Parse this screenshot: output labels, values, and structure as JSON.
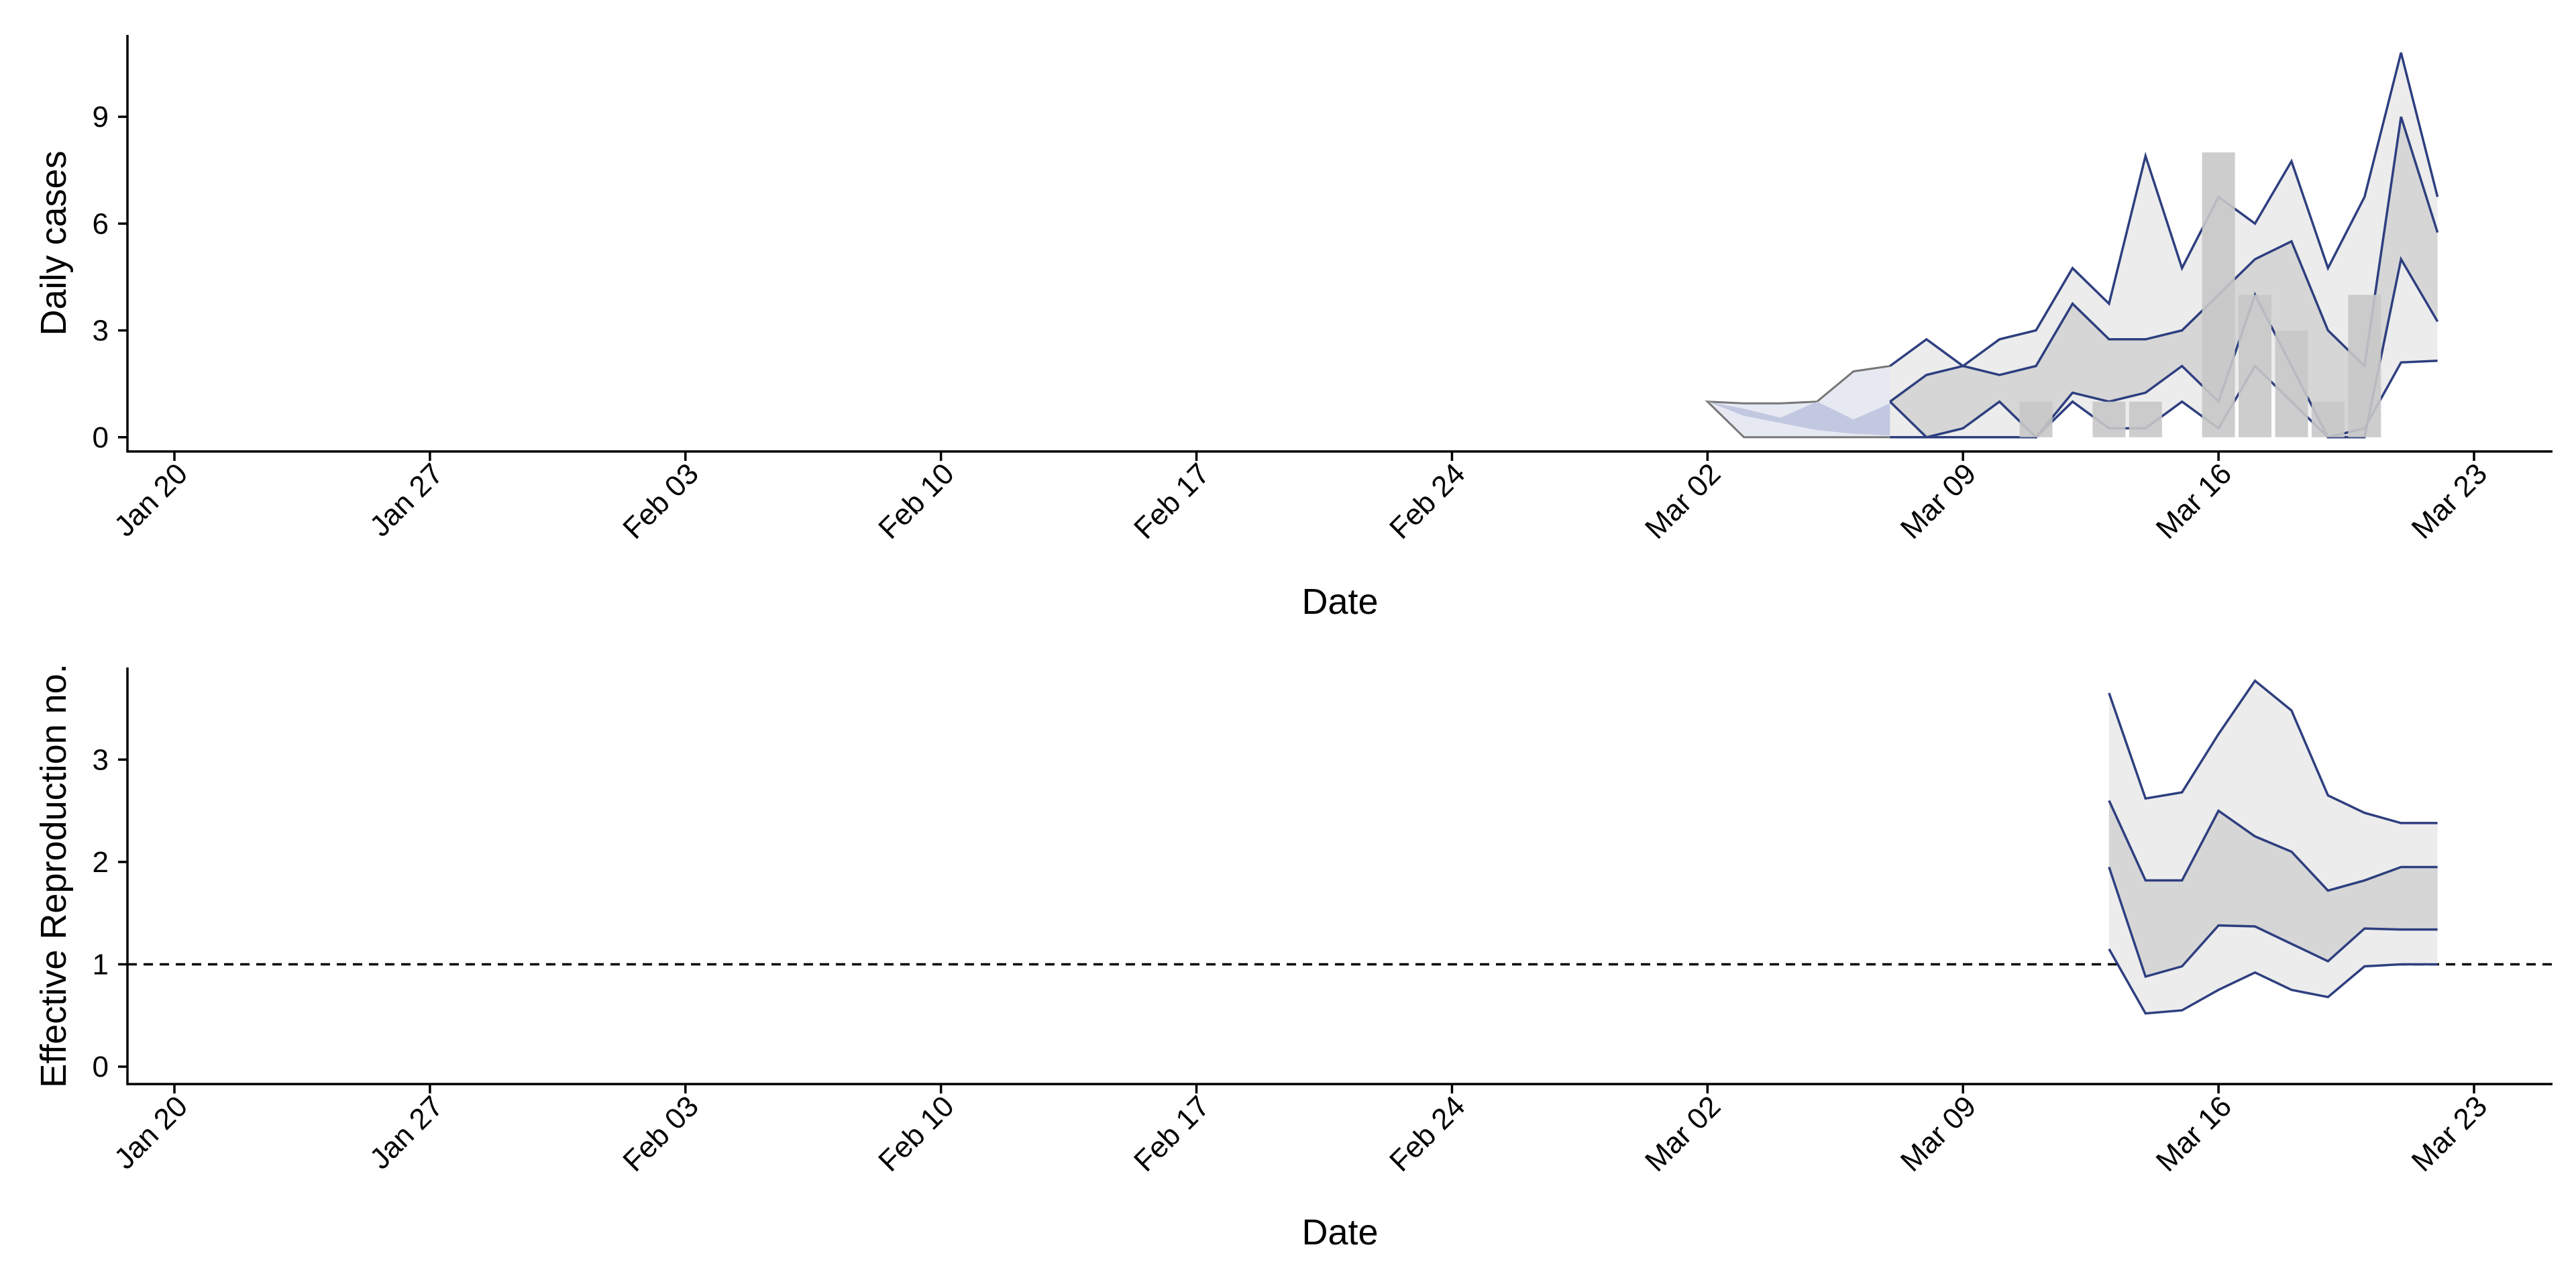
{
  "colors": {
    "line": "#2e3f7f",
    "bar": "#c8c8c8",
    "band_outer": "#ececec",
    "band_inner": "#d2d2d2",
    "nowcast_outer": "#e6e8f2",
    "nowcast_inner": "#c2c8e0",
    "nowcast_line": "#777777"
  },
  "chart_data": [
    {
      "type": "area",
      "xlabel": "Date",
      "ylabel": "Daily cases",
      "x_ticks": [
        "Jan 20",
        "Jan 27",
        "Feb 03",
        "Feb 10",
        "Feb 17",
        "Feb 24",
        "Mar 02",
        "Mar 09",
        "Mar 16",
        "Mar 23"
      ],
      "x_range": [
        "2020-01-20",
        "2020-03-23"
      ],
      "y_ticks": [
        "0",
        "3",
        "6",
        "9"
      ],
      "ylim": [
        -0.4,
        11.3
      ],
      "grid": false,
      "bars": {
        "x": [
          "2020-03-11",
          "2020-03-13",
          "2020-03-14",
          "2020-03-16",
          "2020-03-17",
          "2020-03-18",
          "2020-03-19",
          "2020-03-20"
        ],
        "values": [
          1,
          1,
          1,
          8,
          4,
          3,
          1,
          4
        ]
      },
      "nowcast_band": {
        "x": [
          "2020-03-02",
          "2020-03-03",
          "2020-03-04",
          "2020-03-05",
          "2020-03-06",
          "2020-03-07",
          "2020-03-08"
        ],
        "lower90": [
          1.0,
          0.0,
          0.0,
          0.0,
          0.0,
          0.0,
          0.0
        ],
        "upper90": [
          1.0,
          0.95,
          0.95,
          1.0,
          1.85,
          2.0,
          2.05
        ],
        "lower50": [
          1.0,
          0.6,
          0.4,
          0.2,
          0.1,
          0.05,
          0.0
        ],
        "upper50": [
          1.0,
          0.8,
          0.55,
          1.0,
          0.5,
          0.95,
          1.0
        ]
      },
      "series": [
        {
          "x": [
            "2020-03-07",
            "2020-03-08",
            "2020-03-09",
            "2020-03-10",
            "2020-03-11",
            "2020-03-12",
            "2020-03-13",
            "2020-03-14",
            "2020-03-15",
            "2020-03-16",
            "2020-03-17",
            "2020-03-18",
            "2020-03-19",
            "2020-03-20",
            "2020-03-21"
          ],
          "upper90": [
            2.0,
            2.75,
            2.0,
            2.75,
            3.0,
            4.75,
            3.75,
            7.9,
            4.75,
            6.75,
            6.0,
            7.75,
            4.75,
            6.75,
            10.8
          ],
          "upper50": [
            1.0,
            1.75,
            2.0,
            1.75,
            2.0,
            3.75,
            2.75,
            2.75,
            3.0,
            4.0,
            5.0,
            5.5,
            3.0,
            2.0,
            9.0
          ],
          "lower50": [
            1.0,
            0.0,
            0.25,
            1.0,
            0.0,
            1.25,
            1.0,
            1.25,
            2.0,
            1.0,
            4.0,
            2.0,
            0.0,
            0.0,
            5.0
          ],
          "lower90": [
            0.0,
            0.0,
            0.0,
            0.0,
            0.0,
            1.0,
            0.25,
            0.25,
            1.0,
            0.25,
            2.0,
            1.0,
            0.0,
            0.25,
            2.1
          ],
          "end": {
            "x": "2020-03-22",
            "upper90": 6.75,
            "upper50": 5.75,
            "lower50": 3.25,
            "lower90": 2.15
          }
        }
      ]
    },
    {
      "type": "area",
      "xlabel": "Date",
      "ylabel": "Effective Reproduction no.",
      "x_ticks": [
        "Jan 20",
        "Jan 27",
        "Feb 03",
        "Feb 10",
        "Feb 17",
        "Feb 24",
        "Mar 02",
        "Mar 09",
        "Mar 16",
        "Mar 23"
      ],
      "x_range": [
        "2020-01-20",
        "2020-03-23"
      ],
      "y_ticks": [
        "0",
        "1",
        "2",
        "3"
      ],
      "ylim": [
        -0.17,
        3.9
      ],
      "grid": false,
      "reference_line": {
        "y": 1,
        "style": "dashed"
      },
      "series": [
        {
          "x": [
            "2020-03-13",
            "2020-03-14",
            "2020-03-15",
            "2020-03-16",
            "2020-03-17",
            "2020-03-18",
            "2020-03-19",
            "2020-03-20",
            "2020-03-21",
            "2020-03-22"
          ],
          "upper90": [
            3.65,
            2.62,
            2.68,
            3.25,
            3.77,
            3.48,
            2.65,
            2.48,
            2.38,
            2.38
          ],
          "upper50": [
            2.6,
            1.82,
            1.82,
            2.5,
            2.25,
            2.1,
            1.72,
            1.82,
            1.95,
            1.95
          ],
          "lower50": [
            1.95,
            0.88,
            0.98,
            1.38,
            1.37,
            1.2,
            1.03,
            1.35,
            1.34,
            1.34
          ],
          "lower90": [
            1.15,
            0.52,
            0.55,
            0.75,
            0.92,
            0.75,
            0.68,
            0.98,
            1.0,
            1.0
          ]
        }
      ]
    }
  ]
}
